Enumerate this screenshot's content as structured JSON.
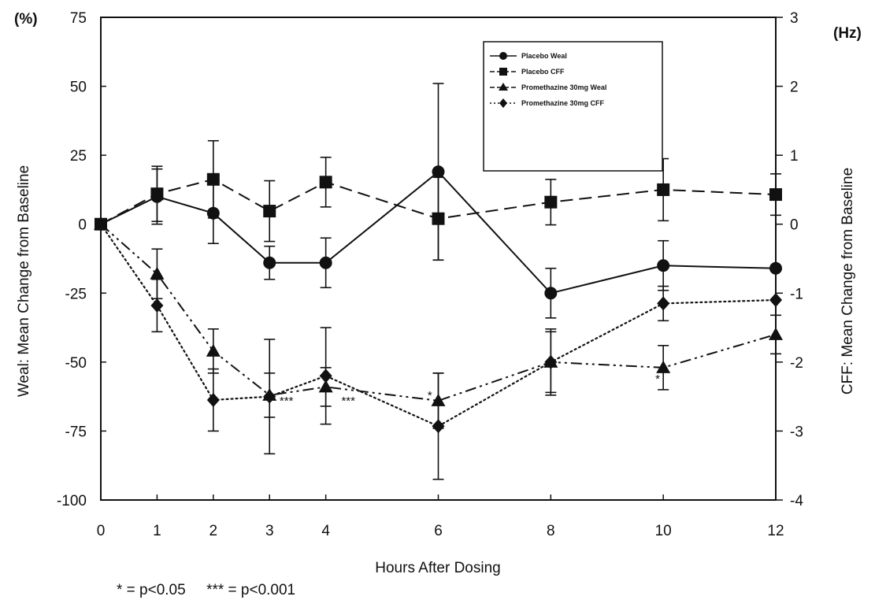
{
  "chart_data": {
    "type": "line",
    "xlabel": "Hours After Dosing",
    "ylabel_left": "Weal: Mean Change from Baseline",
    "ylabel_right": "CFF: Mean Change from Baseline",
    "unit_left": "(%)",
    "unit_right": "(Hz)",
    "x_ticks": [
      0,
      1,
      2,
      3,
      4,
      6,
      8,
      10,
      12
    ],
    "x_tick_labels": [
      "0",
      "1",
      "2",
      "3",
      "4",
      "6",
      "8",
      "10",
      "12"
    ],
    "y_left_ticks": [
      75,
      50,
      25,
      0,
      -25,
      -50,
      -75,
      -100
    ],
    "y_left_tick_labels": [
      "75",
      "50",
      "25",
      "0",
      "-25",
      "-50",
      "-75",
      "-100"
    ],
    "y_right_ticks": [
      3,
      2,
      1,
      0,
      -1,
      -2,
      -3,
      -4
    ],
    "y_right_tick_labels": [
      "3",
      "2",
      "1",
      "0",
      "-1",
      "-2",
      "-3",
      "-4"
    ],
    "xlim": [
      0,
      12
    ],
    "ylim_left": [
      -100,
      75
    ],
    "ylim_right": [
      -4,
      3
    ],
    "grid": false,
    "legend_position": "top-right",
    "series": [
      {
        "name": "Placebo Weal",
        "axis": "left",
        "marker": "circle",
        "line": "solid",
        "x": [
          0,
          1,
          2,
          3,
          4,
          6,
          8,
          10,
          12
        ],
        "y": [
          0,
          10,
          4,
          -14,
          -14,
          19,
          -25,
          -15,
          -16
        ],
        "err": [
          0,
          10,
          11,
          6,
          9,
          32,
          9,
          9,
          0
        ]
      },
      {
        "name": "Placebo CFF",
        "axis": "right",
        "marker": "square",
        "line": "dashed",
        "x": [
          0,
          1,
          2,
          3,
          4,
          6,
          8,
          10,
          12
        ],
        "y": [
          0,
          0.44,
          0.65,
          0.19,
          0.61,
          0.08,
          0.32,
          0.5,
          0.43
        ],
        "err": [
          0,
          0.4,
          0.56,
          0.44,
          0.36,
          0.6,
          0.33,
          0.45,
          0.3
        ]
      },
      {
        "name": "Promethazine 30mg Weal",
        "axis": "left",
        "marker": "triangle",
        "line": "dash-dot",
        "x": [
          0,
          1,
          2,
          3,
          4,
          6,
          8,
          10,
          12
        ],
        "y": [
          0,
          -18,
          -46,
          -62,
          -59,
          -64,
          -50,
          -52,
          -40
        ],
        "err": [
          0,
          9,
          8,
          8,
          7,
          10,
          12,
          8,
          7
        ]
      },
      {
        "name": "Promethazine 30mg CFF",
        "axis": "right",
        "marker": "diamond",
        "line": "dotted",
        "x": [
          0,
          1,
          2,
          3,
          4,
          6,
          8,
          10,
          12
        ],
        "y": [
          0,
          -1.18,
          -2.55,
          -2.5,
          -2.2,
          -2.93,
          -2,
          -1.15,
          -1.1
        ],
        "err": [
          0,
          0.38,
          0.45,
          0.83,
          0.7,
          0.77,
          0.44,
          0.25,
          0
        ]
      }
    ],
    "annotations": [
      {
        "text": "***",
        "x": 3.3,
        "y": -64,
        "axis": "left"
      },
      {
        "text": "***",
        "x": 4.4,
        "y": -64,
        "axis": "left"
      },
      {
        "text": "*",
        "x": 5.85,
        "y": -62,
        "axis": "left"
      },
      {
        "text": "*",
        "x": 9.9,
        "y": -56,
        "axis": "left"
      }
    ],
    "footnote": "* = p<0.05     *** = p<0.001"
  }
}
